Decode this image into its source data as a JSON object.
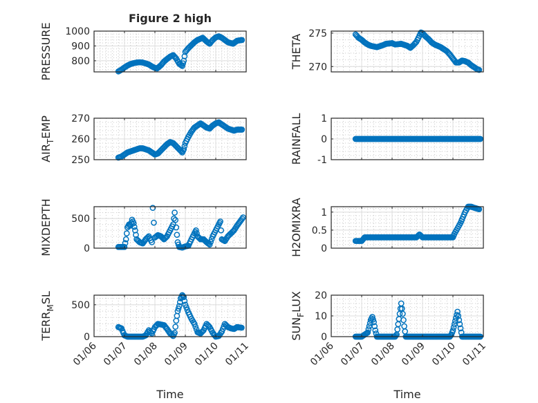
{
  "title": "Figure 2 high",
  "chart_data": [
    {
      "type": "scatter",
      "ylabel": "PRESSURE",
      "ylim": [
        725,
        1000
      ],
      "yticks": [
        800,
        900,
        1000
      ],
      "xlim": [
        0,
        5
      ],
      "x": [
        0.8,
        0.9,
        1.0,
        1.1,
        1.2,
        1.3,
        1.4,
        1.5,
        1.6,
        1.7,
        1.8,
        1.9,
        2.0,
        2.07,
        2.2,
        2.3,
        2.4,
        2.5,
        2.6,
        2.7,
        2.8,
        2.9,
        2.95,
        3.0,
        3.1,
        3.2,
        3.3,
        3.4,
        3.57,
        3.7,
        3.8,
        3.9,
        4.0,
        4.1,
        4.2,
        4.3,
        4.4,
        4.57,
        4.7,
        4.86
      ],
      "y": [
        728,
        740,
        755,
        768,
        778,
        784,
        788,
        790,
        788,
        782,
        775,
        762,
        752,
        748,
        770,
        795,
        812,
        828,
        838,
        815,
        780,
        765,
        800,
        860,
        885,
        905,
        925,
        940,
        955,
        930,
        915,
        940,
        958,
        965,
        955,
        940,
        925,
        915,
        935,
        940
      ]
    },
    {
      "type": "scatter",
      "ylabel": "THETA",
      "ylim": [
        269.2,
        275.3
      ],
      "yticks": [
        270,
        275
      ],
      "xlim": [
        0,
        5
      ],
      "x": [
        0.8,
        0.9,
        1.0,
        1.1,
        1.2,
        1.3,
        1.5,
        1.7,
        1.8,
        2.0,
        2.1,
        2.3,
        2.5,
        2.6,
        2.7,
        2.8,
        2.9,
        2.95,
        3.0,
        3.1,
        3.2,
        3.3,
        3.4,
        3.5,
        3.6,
        3.7,
        3.8,
        3.9,
        4.0,
        4.1,
        4.2,
        4.3,
        4.4,
        4.5,
        4.6,
        4.7,
        4.8,
        4.86
      ],
      "y": [
        274.8,
        274.3,
        274.0,
        273.6,
        273.3,
        273.1,
        272.9,
        273.2,
        273.4,
        273.5,
        273.3,
        273.4,
        273.1,
        272.8,
        273.2,
        273.7,
        274.6,
        275.1,
        275.0,
        274.5,
        274.1,
        273.6,
        273.3,
        273.1,
        272.9,
        272.6,
        272.3,
        271.8,
        271.2,
        270.6,
        270.6,
        270.9,
        270.8,
        270.6,
        270.2,
        269.9,
        269.6,
        269.5
      ]
    },
    {
      "type": "scatter",
      "ylabel": "AIR_TEMP",
      "ylim": [
        250,
        270
      ],
      "yticks": [
        250,
        260,
        270
      ],
      "xlim": [
        0,
        5
      ],
      "x": [
        0.8,
        0.9,
        1.0,
        1.1,
        1.2,
        1.3,
        1.4,
        1.5,
        1.6,
        1.7,
        1.8,
        1.9,
        2.0,
        2.1,
        2.2,
        2.3,
        2.4,
        2.5,
        2.6,
        2.7,
        2.8,
        2.9,
        2.95,
        3.0,
        3.1,
        3.2,
        3.3,
        3.4,
        3.5,
        3.6,
        3.7,
        3.8,
        3.9,
        4.0,
        4.1,
        4.2,
        4.3,
        4.4,
        4.5,
        4.6,
        4.7,
        4.86
      ],
      "y": [
        251,
        251.5,
        252.5,
        253.5,
        254,
        254.5,
        255,
        255.5,
        255.5,
        255,
        254.5,
        253.5,
        252.5,
        253,
        254.5,
        256,
        257.5,
        258.5,
        258,
        256.5,
        255,
        253.5,
        255,
        258,
        261,
        263.5,
        265.5,
        266.5,
        267.5,
        266.5,
        265.5,
        265,
        266.5,
        267.5,
        268,
        267,
        266,
        265,
        264.5,
        264,
        264.5,
        264.5
      ]
    },
    {
      "type": "scatter",
      "ylabel": "RAINFALL",
      "ylim": [
        -1,
        1
      ],
      "yticks": [
        -1,
        0,
        1
      ],
      "xlim": [
        0,
        5
      ],
      "x": [
        0.8,
        4.9
      ],
      "y": [
        0,
        0
      ]
    },
    {
      "type": "scatter",
      "ylabel": "MIXDEPTH",
      "ylim": [
        0,
        700
      ],
      "yticks": [
        0,
        500
      ],
      "xlim": [
        0,
        5
      ],
      "x": [
        0.8,
        0.9,
        1.0,
        1.05,
        1.1,
        1.15,
        1.2,
        1.25,
        1.3,
        1.35,
        1.4,
        1.5,
        1.6,
        1.7,
        1.8,
        1.9,
        1.93,
        2.0,
        2.1,
        2.2,
        2.3,
        2.4,
        2.5,
        2.6,
        2.65,
        2.7,
        2.75,
        2.8,
        2.9,
        3.0,
        3.1,
        3.2,
        3.3,
        3.35,
        3.4,
        3.5,
        3.6,
        3.7,
        3.8,
        3.9,
        4.0,
        4.1,
        4.15,
        4.2,
        4.3,
        4.4,
        4.5,
        4.6,
        4.7,
        4.8,
        4.9
      ],
      "y": [
        20,
        20,
        20,
        150,
        350,
        400,
        380,
        480,
        420,
        300,
        150,
        100,
        80,
        150,
        200,
        100,
        680,
        180,
        220,
        200,
        150,
        200,
        300,
        400,
        600,
        350,
        100,
        20,
        10,
        30,
        40,
        150,
        250,
        300,
        200,
        150,
        150,
        100,
        60,
        200,
        300,
        400,
        450,
        150,
        120,
        200,
        250,
        300,
        380,
        450,
        520
      ]
    },
    {
      "type": "scatter",
      "ylabel": "H2OMIXRA",
      "ylim": [
        0,
        1.15
      ],
      "yticks": [
        0,
        0.5,
        1
      ],
      "xlim": [
        0,
        5
      ],
      "x": [
        0.8,
        0.9,
        1.0,
        1.1,
        1.5,
        2.0,
        2.5,
        2.8,
        2.9,
        3.0,
        3.5,
        4.0,
        4.05,
        4.15,
        4.25,
        4.3,
        4.4,
        4.5,
        4.6,
        4.7,
        4.86
      ],
      "y": [
        0.2,
        0.2,
        0.2,
        0.3,
        0.3,
        0.3,
        0.3,
        0.3,
        0.38,
        0.3,
        0.3,
        0.3,
        0.4,
        0.55,
        0.7,
        0.8,
        1.0,
        1.15,
        1.15,
        1.12,
        1.08
      ]
    },
    {
      "type": "scatter",
      "ylabel": "TERR_MSL",
      "ylim": [
        0,
        650
      ],
      "yticks": [
        0,
        500
      ],
      "xlim": [
        0,
        5
      ],
      "x": [
        0.8,
        0.9,
        1.0,
        1.1,
        1.3,
        1.5,
        1.6,
        1.7,
        1.8,
        1.9,
        2.0,
        2.1,
        2.2,
        2.3,
        2.4,
        2.5,
        2.6,
        2.65,
        2.7,
        2.75,
        2.8,
        2.85,
        2.9,
        2.95,
        3.0,
        3.1,
        3.2,
        3.3,
        3.4,
        3.5,
        3.6,
        3.7,
        3.8,
        3.9,
        4.0,
        4.1,
        4.2,
        4.3,
        4.4,
        4.5,
        4.6,
        4.7,
        4.85
      ],
      "y": [
        150,
        130,
        20,
        0,
        0,
        0,
        0,
        20,
        100,
        50,
        150,
        200,
        190,
        180,
        120,
        50,
        10,
        60,
        250,
        400,
        480,
        600,
        650,
        620,
        500,
        380,
        280,
        200,
        70,
        50,
        100,
        200,
        150,
        60,
        0,
        10,
        80,
        200,
        150,
        130,
        120,
        150,
        140
      ]
    },
    {
      "type": "scatter",
      "ylabel": "SUN_FLUX",
      "ylim": [
        0,
        20
      ],
      "yticks": [
        0,
        10,
        20
      ],
      "xlim": [
        0,
        5
      ],
      "x": [
        0.8,
        1.0,
        1.2,
        1.25,
        1.3,
        1.35,
        1.4,
        1.45,
        1.5,
        1.8,
        2.1,
        2.15,
        2.2,
        2.25,
        2.3,
        2.35,
        2.4,
        2.45,
        3.0,
        3.5,
        3.9,
        3.95,
        4.0,
        4.05,
        4.1,
        4.15,
        4.2,
        4.25,
        4.3,
        4.6,
        4.9
      ],
      "y": [
        0,
        0,
        2,
        5,
        8,
        9.5,
        7,
        3,
        0,
        0,
        0,
        1,
        6,
        11,
        16,
        11,
        5,
        0,
        0,
        0,
        0,
        1,
        3,
        6,
        9,
        12,
        8,
        4,
        0,
        0,
        0
      ]
    }
  ],
  "xtick_labels": [
    "01/06",
    "01/07",
    "01/08",
    "01/09",
    "01/10",
    "01/11"
  ],
  "xlabel": "Time",
  "marker_color": "#0072BD"
}
